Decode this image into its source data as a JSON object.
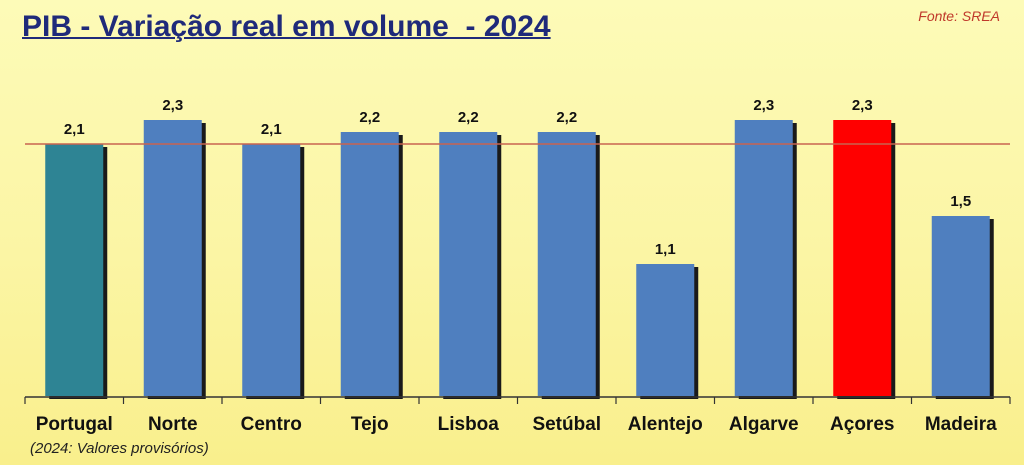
{
  "title": "PIB - Variação real em volume  - 2024",
  "source": "Fonte: SREA",
  "note": "(2024: Valores provisórios)",
  "colors": {
    "default_bar": "#4f7fbf",
    "portugal_bar": "#2e8494",
    "azores_bar": "#ff0000",
    "reference_line": "#c86450",
    "axis": "#333333"
  },
  "chart_data": {
    "type": "bar",
    "title": "PIB - Variação real em volume  - 2024",
    "xlabel": "",
    "ylabel": "",
    "categories": [
      "Portugal",
      "Norte",
      "Centro",
      "Tejo",
      "Lisboa",
      "Setúbal",
      "Alentejo",
      "Algarve",
      "Açores",
      "Madeira"
    ],
    "values": [
      2.1,
      2.3,
      2.1,
      2.2,
      2.2,
      2.2,
      1.1,
      2.3,
      2.3,
      1.5
    ],
    "value_labels": [
      "2,1",
      "2,3",
      "2,1",
      "2,2",
      "2,2",
      "2,2",
      "1,1",
      "2,3",
      "2,3",
      "1,5"
    ],
    "bar_colors": [
      "#2e8494",
      "#4f7fbf",
      "#4f7fbf",
      "#4f7fbf",
      "#4f7fbf",
      "#4f7fbf",
      "#4f7fbf",
      "#4f7fbf",
      "#ff0000",
      "#4f7fbf"
    ],
    "reference_value": 2.1,
    "ylim": [
      0,
      2.3
    ],
    "grid": false,
    "legend": "none"
  }
}
